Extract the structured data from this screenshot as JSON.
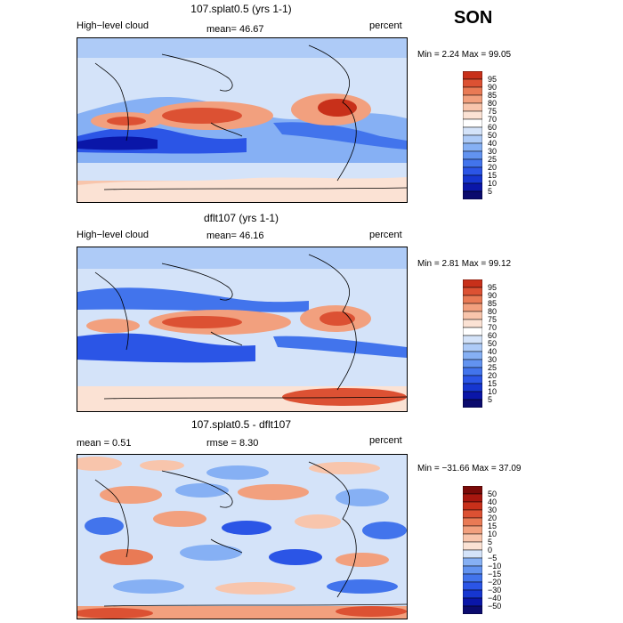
{
  "season": "SON",
  "panels": [
    {
      "title": "107.splat0.5 (yrs 1-1)",
      "left_label": "High−level cloud",
      "center_label": "mean=  46.67",
      "units": "percent",
      "minmax": "Min =    2.24  Max =   99.05",
      "colorbar_labels": [
        "95",
        "90",
        "85",
        "80",
        "75",
        "70",
        "60",
        "50",
        "40",
        "30",
        "25",
        "20",
        "15",
        "10",
        "5"
      ]
    },
    {
      "title": "dflt107 (yrs 1-1)",
      "left_label": "High−level cloud",
      "center_label": "mean=  46.16",
      "units": "percent",
      "minmax": "Min =    2.81  Max =   99.12",
      "colorbar_labels": [
        "95",
        "90",
        "85",
        "80",
        "75",
        "70",
        "60",
        "50",
        "40",
        "30",
        "25",
        "20",
        "15",
        "10",
        "5"
      ]
    },
    {
      "title": "107.splat0.5 - dflt107",
      "left_label": "mean =    0.51",
      "center_label": "rmse =    8.30",
      "units": "percent",
      "minmax": "Min = −31.66  Max =   37.09",
      "colorbar_labels": [
        "50",
        "40",
        "30",
        "20",
        "15",
        "10",
        "5",
        "0",
        "−5",
        "−10",
        "−15",
        "−20",
        "−30",
        "−40",
        "−50"
      ]
    }
  ],
  "chart_data": [
    {
      "type": "heatmap",
      "title": "107.splat0.5 (yrs 1-1)",
      "variable": "High−level cloud",
      "units": "percent",
      "mean": 46.67,
      "min": 2.24,
      "max": 99.05,
      "levels": [
        5,
        10,
        15,
        20,
        25,
        30,
        40,
        50,
        60,
        70,
        75,
        80,
        85,
        90,
        95
      ],
      "colors": [
        "#0b0b6e",
        "#0a16a8",
        "#1636d0",
        "#2b55e6",
        "#4274ec",
        "#6293f0",
        "#86b0f4",
        "#aecbf7",
        "#d4e3f9",
        "#ffffff",
        "#fbe2d4",
        "#f8c5ac",
        "#f2a07e",
        "#e97a55",
        "#dc5133",
        "#c8301a"
      ]
    },
    {
      "type": "heatmap",
      "title": "dflt107 (yrs 1-1)",
      "variable": "High−level cloud",
      "units": "percent",
      "mean": 46.16,
      "min": 2.81,
      "max": 99.12,
      "levels": [
        5,
        10,
        15,
        20,
        25,
        30,
        40,
        50,
        60,
        70,
        75,
        80,
        85,
        90,
        95
      ],
      "colors": [
        "#0b0b6e",
        "#0a16a8",
        "#1636d0",
        "#2b55e6",
        "#4274ec",
        "#6293f0",
        "#86b0f4",
        "#aecbf7",
        "#d4e3f9",
        "#ffffff",
        "#fbe2d4",
        "#f8c5ac",
        "#f2a07e",
        "#e97a55",
        "#dc5133",
        "#c8301a"
      ]
    },
    {
      "type": "heatmap",
      "title": "107.splat0.5 - dflt107",
      "units": "percent",
      "mean": 0.51,
      "rmse": 8.3,
      "min": -31.66,
      "max": 37.09,
      "levels": [
        -50,
        -40,
        -30,
        -20,
        -15,
        -10,
        -5,
        0,
        5,
        10,
        15,
        20,
        30,
        40,
        50
      ],
      "colors": [
        "#0b0b6e",
        "#0a16a8",
        "#1636d0",
        "#2b55e6",
        "#4274ec",
        "#6293f0",
        "#86b0f4",
        "#d4e3f9",
        "#fbe2d4",
        "#f8c5ac",
        "#f2a07e",
        "#e97a55",
        "#dc5133",
        "#c8301a",
        "#a8170f",
        "#7a0a08"
      ]
    }
  ]
}
